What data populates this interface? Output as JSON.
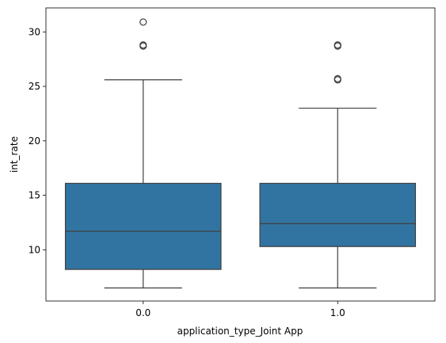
{
  "chart_data": {
    "type": "box",
    "title": "",
    "xlabel": "application_type_Joint App",
    "ylabel": "int_rate",
    "ylim": [
      5.3,
      32.2
    ],
    "yticks": [
      10,
      15,
      20,
      25,
      30
    ],
    "ytick_labels": [
      "10",
      "15",
      "20",
      "25",
      "30"
    ],
    "categories": [
      "0.0",
      "1.0"
    ],
    "grid": false,
    "legend": "none",
    "box_color": "#3274a1",
    "line_color": "#3f3f3f",
    "boxes": [
      {
        "category": "0.0",
        "whisker_low": 6.5,
        "q1": 8.2,
        "median": 11.7,
        "q3": 16.1,
        "whisker_high": 25.6,
        "outliers": [
          28.7,
          28.8,
          30.9
        ]
      },
      {
        "category": "1.0",
        "whisker_low": 6.5,
        "q1": 10.3,
        "median": 12.4,
        "q3": 16.1,
        "whisker_high": 23.0,
        "outliers": [
          25.6,
          25.7,
          28.7,
          28.8
        ]
      }
    ]
  }
}
